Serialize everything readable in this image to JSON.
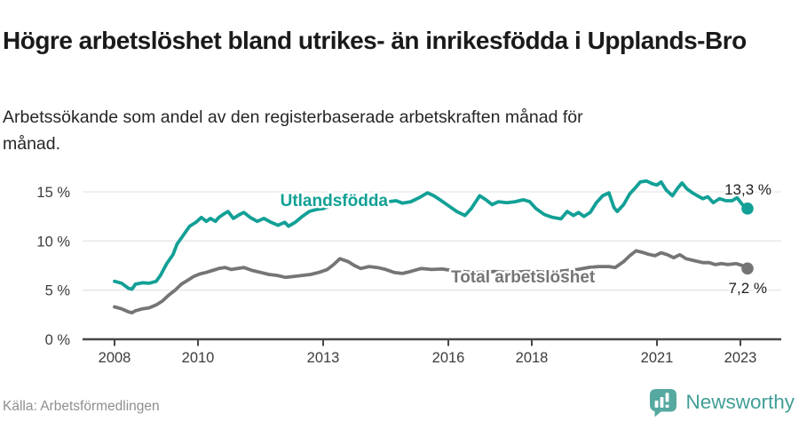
{
  "header": {
    "title": "Högre arbetslöshet bland utrikes- än inrikesfödda i Upplands-Bro",
    "subtitle": "Arbetssökande som andel av den registerbaserade arbetskraften månad för månad."
  },
  "footer": {
    "source": "Källa: Arbetsförmedlingen",
    "brand": "Newsworthy"
  },
  "colors": {
    "series1": "#12a096",
    "series2": "#757575",
    "grid": "#e6e6e6",
    "axis": "#474747",
    "tick_label": "#3c3c3c",
    "brand_teal": "#56a9a1"
  },
  "chart_data": {
    "type": "line",
    "unit": "%",
    "x_ref": 2008,
    "x_ticks": [
      2008,
      2010,
      2013,
      2016,
      2018,
      2021,
      2023
    ],
    "x_tick_labels": [
      "2008",
      "2010",
      "2013",
      "2016",
      "2018",
      "2021",
      "2023"
    ],
    "y_ticks": [
      0,
      5,
      10,
      15
    ],
    "y_tick_labels": [
      "0 %",
      "5 %",
      "10 %",
      "15 %"
    ],
    "xlim": [
      2007.2,
      2023.95
    ],
    "ylim": [
      0,
      16.5
    ],
    "grid": "horizontal",
    "legend_position": "inline-labels",
    "series": [
      {
        "name": "Utlandsfödda",
        "color": "#12a096",
        "end_label": "13,3 %",
        "end_value": 13.3,
        "points": [
          [
            2008.0,
            5.9
          ],
          [
            2008.17,
            5.7
          ],
          [
            2008.33,
            5.2
          ],
          [
            2008.42,
            5.1
          ],
          [
            2008.5,
            5.6
          ],
          [
            2008.67,
            5.75
          ],
          [
            2008.83,
            5.7
          ],
          [
            2009.0,
            5.9
          ],
          [
            2009.1,
            6.5
          ],
          [
            2009.25,
            7.7
          ],
          [
            2009.4,
            8.6
          ],
          [
            2009.5,
            9.7
          ],
          [
            2009.65,
            10.6
          ],
          [
            2009.8,
            11.5
          ],
          [
            2009.95,
            11.9
          ],
          [
            2010.08,
            12.4
          ],
          [
            2010.2,
            12.0
          ],
          [
            2010.3,
            12.3
          ],
          [
            2010.42,
            12.0
          ],
          [
            2010.5,
            12.4
          ],
          [
            2010.6,
            12.7
          ],
          [
            2010.72,
            13.0
          ],
          [
            2010.85,
            12.3
          ],
          [
            2011.0,
            12.7
          ],
          [
            2011.1,
            12.9
          ],
          [
            2011.25,
            12.4
          ],
          [
            2011.42,
            12.0
          ],
          [
            2011.58,
            12.3
          ],
          [
            2011.75,
            11.9
          ],
          [
            2011.92,
            11.6
          ],
          [
            2012.08,
            11.9
          ],
          [
            2012.17,
            11.5
          ],
          [
            2012.33,
            11.9
          ],
          [
            2012.5,
            12.5
          ],
          [
            2012.67,
            13.0
          ],
          [
            2012.83,
            13.2
          ],
          [
            2013.0,
            13.3
          ],
          [
            2013.25,
            13.7
          ],
          [
            2013.5,
            14.0
          ],
          [
            2013.75,
            13.9
          ],
          [
            2014.0,
            13.8
          ],
          [
            2014.25,
            14.0
          ],
          [
            2014.55,
            14.0
          ],
          [
            2014.75,
            14.1
          ],
          [
            2014.9,
            13.85
          ],
          [
            2015.1,
            14.0
          ],
          [
            2015.3,
            14.4
          ],
          [
            2015.5,
            14.9
          ],
          [
            2015.65,
            14.6
          ],
          [
            2015.8,
            14.2
          ],
          [
            2016.0,
            13.6
          ],
          [
            2016.2,
            13.0
          ],
          [
            2016.4,
            12.6
          ],
          [
            2016.55,
            13.3
          ],
          [
            2016.75,
            14.6
          ],
          [
            2016.9,
            14.2
          ],
          [
            2017.05,
            13.7
          ],
          [
            2017.2,
            14.0
          ],
          [
            2017.4,
            13.9
          ],
          [
            2017.6,
            14.0
          ],
          [
            2017.8,
            14.2
          ],
          [
            2017.95,
            14.0
          ],
          [
            2018.1,
            13.3
          ],
          [
            2018.3,
            12.7
          ],
          [
            2018.5,
            12.4
          ],
          [
            2018.7,
            12.25
          ],
          [
            2018.85,
            13.0
          ],
          [
            2019.0,
            12.6
          ],
          [
            2019.12,
            12.9
          ],
          [
            2019.25,
            12.5
          ],
          [
            2019.4,
            12.9
          ],
          [
            2019.55,
            13.9
          ],
          [
            2019.7,
            14.6
          ],
          [
            2019.85,
            14.9
          ],
          [
            2019.97,
            13.4
          ],
          [
            2020.05,
            13.0
          ],
          [
            2020.2,
            13.7
          ],
          [
            2020.35,
            14.8
          ],
          [
            2020.5,
            15.5
          ],
          [
            2020.6,
            16.0
          ],
          [
            2020.75,
            16.1
          ],
          [
            2020.9,
            15.8
          ],
          [
            2021.0,
            15.7
          ],
          [
            2021.1,
            16.0
          ],
          [
            2021.22,
            15.2
          ],
          [
            2021.37,
            14.6
          ],
          [
            2021.5,
            15.4
          ],
          [
            2021.6,
            15.9
          ],
          [
            2021.72,
            15.3
          ],
          [
            2021.85,
            14.9
          ],
          [
            2021.97,
            14.6
          ],
          [
            2022.1,
            14.3
          ],
          [
            2022.22,
            14.5
          ],
          [
            2022.35,
            13.9
          ],
          [
            2022.5,
            14.3
          ],
          [
            2022.65,
            14.1
          ],
          [
            2022.8,
            14.1
          ],
          [
            2022.92,
            14.4
          ],
          [
            2023.05,
            13.7
          ],
          [
            2023.17,
            13.3
          ]
        ]
      },
      {
        "name": "Total arbetslöshet",
        "color": "#757575",
        "end_label": "7,2 %",
        "end_value": 7.2,
        "points": [
          [
            2008.0,
            3.3
          ],
          [
            2008.17,
            3.1
          ],
          [
            2008.33,
            2.8
          ],
          [
            2008.42,
            2.7
          ],
          [
            2008.5,
            2.9
          ],
          [
            2008.67,
            3.1
          ],
          [
            2008.83,
            3.2
          ],
          [
            2009.0,
            3.5
          ],
          [
            2009.15,
            3.9
          ],
          [
            2009.3,
            4.5
          ],
          [
            2009.45,
            5.0
          ],
          [
            2009.6,
            5.6
          ],
          [
            2009.75,
            6.0
          ],
          [
            2009.9,
            6.4
          ],
          [
            2010.05,
            6.65
          ],
          [
            2010.2,
            6.8
          ],
          [
            2010.35,
            7.0
          ],
          [
            2010.5,
            7.2
          ],
          [
            2010.65,
            7.3
          ],
          [
            2010.8,
            7.1
          ],
          [
            2010.95,
            7.2
          ],
          [
            2011.1,
            7.3
          ],
          [
            2011.3,
            7.0
          ],
          [
            2011.5,
            6.8
          ],
          [
            2011.7,
            6.6
          ],
          [
            2011.9,
            6.5
          ],
          [
            2012.1,
            6.3
          ],
          [
            2012.3,
            6.4
          ],
          [
            2012.5,
            6.5
          ],
          [
            2012.7,
            6.6
          ],
          [
            2012.9,
            6.8
          ],
          [
            2013.1,
            7.1
          ],
          [
            2013.25,
            7.6
          ],
          [
            2013.4,
            8.2
          ],
          [
            2013.6,
            7.9
          ],
          [
            2013.75,
            7.5
          ],
          [
            2013.9,
            7.2
          ],
          [
            2014.1,
            7.4
          ],
          [
            2014.3,
            7.3
          ],
          [
            2014.5,
            7.1
          ],
          [
            2014.7,
            6.8
          ],
          [
            2014.9,
            6.7
          ],
          [
            2015.1,
            6.9
          ],
          [
            2015.35,
            7.2
          ],
          [
            2015.6,
            7.1
          ],
          [
            2015.85,
            7.15
          ],
          [
            2016.1,
            7.0
          ],
          [
            2016.35,
            6.9
          ],
          [
            2016.6,
            6.8
          ],
          [
            2016.85,
            6.8
          ],
          [
            2017.1,
            6.9
          ],
          [
            2017.35,
            6.8
          ],
          [
            2017.6,
            6.8
          ],
          [
            2017.85,
            6.9
          ],
          [
            2018.1,
            6.9
          ],
          [
            2018.35,
            6.8
          ],
          [
            2018.6,
            6.9
          ],
          [
            2018.85,
            7.0
          ],
          [
            2019.1,
            7.1
          ],
          [
            2019.35,
            7.3
          ],
          [
            2019.6,
            7.4
          ],
          [
            2019.85,
            7.4
          ],
          [
            2020.0,
            7.3
          ],
          [
            2020.2,
            7.9
          ],
          [
            2020.35,
            8.5
          ],
          [
            2020.5,
            9.0
          ],
          [
            2020.65,
            8.85
          ],
          [
            2020.8,
            8.65
          ],
          [
            2020.95,
            8.5
          ],
          [
            2021.1,
            8.8
          ],
          [
            2021.25,
            8.6
          ],
          [
            2021.4,
            8.3
          ],
          [
            2021.55,
            8.6
          ],
          [
            2021.7,
            8.2
          ],
          [
            2021.9,
            8.0
          ],
          [
            2022.1,
            7.8
          ],
          [
            2022.25,
            7.8
          ],
          [
            2022.4,
            7.6
          ],
          [
            2022.55,
            7.7
          ],
          [
            2022.7,
            7.6
          ],
          [
            2022.9,
            7.7
          ],
          [
            2023.05,
            7.5
          ],
          [
            2023.17,
            7.2
          ]
        ]
      }
    ]
  }
}
